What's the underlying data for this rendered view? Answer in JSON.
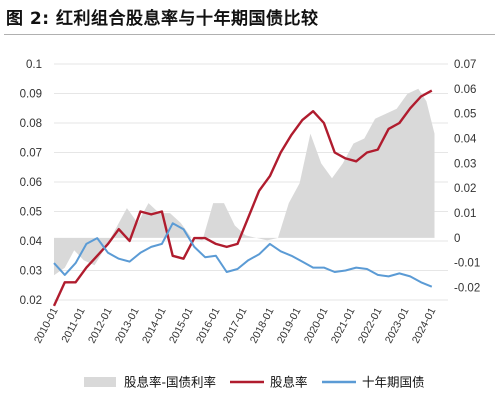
{
  "title": "图 2: 红利组合股息率与十年期国债比较",
  "chart_data": {
    "type": "line",
    "title": "图 2: 红利组合股息率与十年期国债比较",
    "colors": {
      "spread": "#d9d9d9",
      "dividend": "#b01c2e",
      "bond": "#5b9bd5"
    },
    "left_axis": {
      "ylim": [
        0.02,
        0.1
      ],
      "ticks": [
        "0.02",
        "0.03",
        "0.04",
        "0.05",
        "0.06",
        "0.07",
        "0.08",
        "0.09",
        "0.1"
      ]
    },
    "right_axis": {
      "ylim": [
        -0.025,
        0.07
      ],
      "ticks": [
        "-0.02",
        "-0.01",
        "0",
        "0.01",
        "0.02",
        "0.03",
        "0.04",
        "0.05",
        "0.06",
        "0.07"
      ]
    },
    "x_ticks": [
      "2010-01",
      "2011-01",
      "2012-01",
      "2013-01",
      "2014-01",
      "2015-01",
      "2016-01",
      "2017-01",
      "2018-01",
      "2019-01",
      "2020-01",
      "2021-01",
      "2022-01",
      "2023-01",
      "2024-01"
    ],
    "x_range": [
      2010,
      2024.6
    ],
    "legend": {
      "placement": "bottom"
    },
    "series": [
      {
        "name": "股息率-国债利率",
        "kind": "area",
        "axis": "right",
        "x": [
          2010.0,
          2010.4,
          2010.75,
          2011.1,
          2011.5,
          2011.9,
          2012.3,
          2012.7,
          2013.1,
          2013.5,
          2013.9,
          2014.3,
          2014.7,
          2015.1,
          2015.5,
          2015.9,
          2016.3,
          2016.7,
          2017.1,
          2017.5,
          2017.9,
          2018.3,
          2018.7,
          2019.1,
          2019.5,
          2019.9,
          2020.3,
          2020.7,
          2021.1,
          2021.5,
          2021.9,
          2022.3,
          2022.7,
          2023.1,
          2023.5,
          2023.8,
          2024.1
        ],
        "values": [
          -0.015,
          -0.012,
          -0.005,
          -0.009,
          -0.011,
          -0.004,
          0.004,
          0.012,
          0.006,
          0.014,
          0.01,
          0.01,
          0.006,
          0.0,
          -0.001,
          0.014,
          0.014,
          0.005,
          0.001,
          0.0,
          -0.001,
          0.0,
          0.014,
          0.022,
          0.042,
          0.03,
          0.024,
          0.03,
          0.038,
          0.04,
          0.048,
          0.05,
          0.052,
          0.058,
          0.06,
          0.055,
          0.042
        ]
      },
      {
        "name": "股息率",
        "kind": "line",
        "axis": "left",
        "x": [
          2010.0,
          2010.4,
          2010.8,
          2011.2,
          2011.6,
          2012.0,
          2012.4,
          2012.8,
          2013.2,
          2013.6,
          2014.0,
          2014.4,
          2014.8,
          2015.2,
          2015.6,
          2016.0,
          2016.4,
          2016.8,
          2017.2,
          2017.6,
          2018.0,
          2018.4,
          2018.8,
          2019.2,
          2019.6,
          2020.0,
          2020.4,
          2020.8,
          2021.2,
          2021.6,
          2022.0,
          2022.4,
          2022.8,
          2023.2,
          2023.6,
          2024.0
        ],
        "values": [
          0.018,
          0.026,
          0.026,
          0.031,
          0.035,
          0.039,
          0.044,
          0.04,
          0.05,
          0.049,
          0.05,
          0.035,
          0.034,
          0.041,
          0.041,
          0.039,
          0.038,
          0.039,
          0.048,
          0.057,
          0.062,
          0.07,
          0.076,
          0.081,
          0.084,
          0.08,
          0.07,
          0.068,
          0.067,
          0.07,
          0.071,
          0.078,
          0.08,
          0.085,
          0.089,
          0.091
        ]
      },
      {
        "name": "十年期国债",
        "kind": "line",
        "axis": "left",
        "x": [
          2010.0,
          2010.4,
          2010.8,
          2011.2,
          2011.6,
          2012.0,
          2012.4,
          2012.8,
          2013.2,
          2013.6,
          2014.0,
          2014.4,
          2014.8,
          2015.2,
          2015.6,
          2016.0,
          2016.4,
          2016.8,
          2017.2,
          2017.6,
          2018.0,
          2018.4,
          2018.8,
          2019.2,
          2019.6,
          2020.0,
          2020.4,
          2020.8,
          2021.2,
          2021.6,
          2022.0,
          2022.4,
          2022.8,
          2023.2,
          2023.6,
          2024.0
        ],
        "values": [
          0.0325,
          0.0285,
          0.0325,
          0.039,
          0.041,
          0.036,
          0.034,
          0.033,
          0.036,
          0.038,
          0.039,
          0.046,
          0.044,
          0.038,
          0.0345,
          0.035,
          0.0295,
          0.0305,
          0.0335,
          0.0355,
          0.039,
          0.0365,
          0.035,
          0.033,
          0.031,
          0.031,
          0.0295,
          0.03,
          0.031,
          0.0305,
          0.0285,
          0.028,
          0.029,
          0.028,
          0.026,
          0.0245
        ]
      }
    ]
  }
}
